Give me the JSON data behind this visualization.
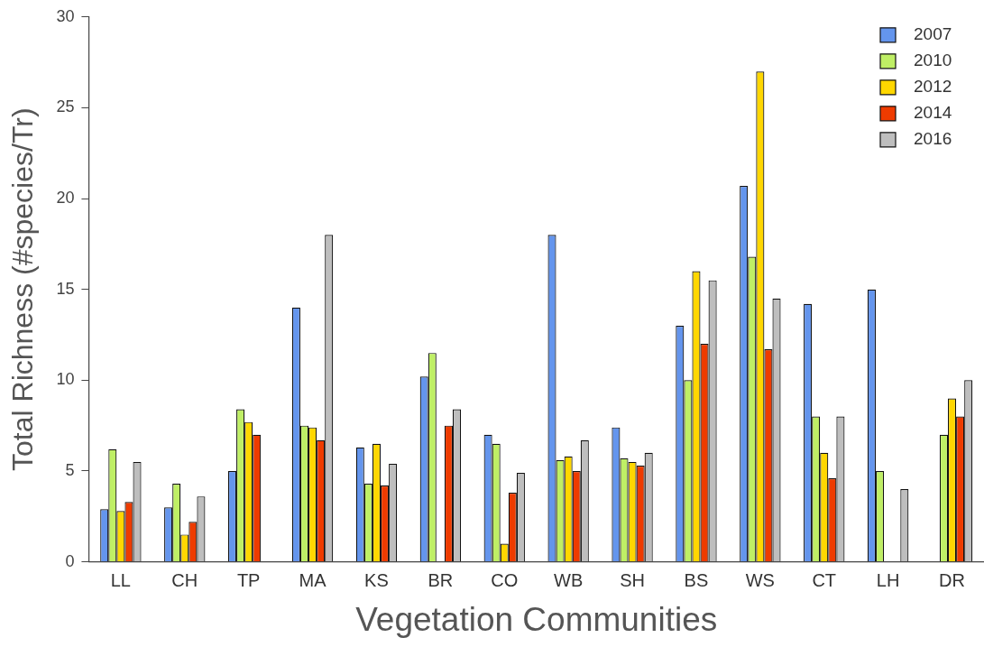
{
  "chart_data": {
    "type": "bar",
    "xlabel": "Vegetation Communities",
    "ylabel": "Total Richness (#species/Tr)",
    "categories": [
      "LL",
      "CH",
      "TP",
      "MA",
      "KS",
      "BR",
      "CO",
      "WB",
      "SH",
      "BS",
      "WS",
      "CT",
      "LH",
      "DR"
    ],
    "ylim": [
      0,
      30
    ],
    "yticks": [
      0,
      5,
      10,
      15,
      20,
      25,
      30
    ],
    "grid": false,
    "legend": "top right",
    "series": [
      {
        "name": "2007",
        "color": "#6495ed",
        "values": [
          2.9,
          3.0,
          5.0,
          14.0,
          6.3,
          10.2,
          7.0,
          18.0,
          7.4,
          13.0,
          20.7,
          14.2,
          15.0,
          null
        ]
      },
      {
        "name": "2010",
        "color": "#bfef65",
        "values": [
          6.2,
          4.3,
          8.4,
          7.5,
          4.3,
          11.5,
          6.5,
          5.6,
          5.7,
          10.0,
          16.8,
          8.0,
          5.0,
          7.0
        ]
      },
      {
        "name": "2012",
        "color": "#ffd700",
        "values": [
          2.8,
          1.5,
          7.7,
          7.4,
          6.5,
          null,
          1.0,
          5.8,
          5.5,
          16.0,
          27.0,
          6.0,
          null,
          9.0
        ]
      },
      {
        "name": "2014",
        "color": "#ee3b00",
        "values": [
          3.3,
          2.2,
          7.0,
          6.7,
          4.2,
          7.5,
          3.8,
          5.0,
          5.3,
          12.0,
          11.7,
          4.6,
          null,
          8.0
        ]
      },
      {
        "name": "2016",
        "color": "#bebebe",
        "values": [
          5.5,
          3.6,
          null,
          18.0,
          5.4,
          8.4,
          4.9,
          6.7,
          6.0,
          15.5,
          14.5,
          8.0,
          4.0,
          10.0
        ]
      }
    ]
  }
}
